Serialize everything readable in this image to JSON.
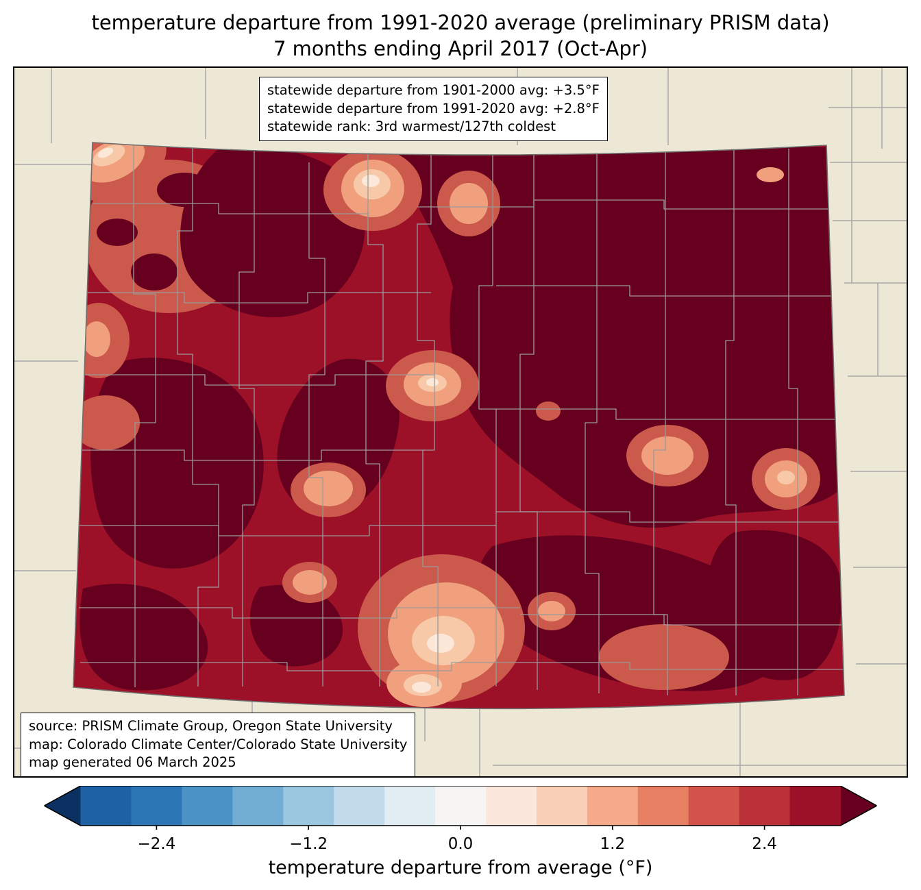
{
  "title": {
    "line1": "temperature departure from 1991-2020 average (preliminary PRISM data)",
    "line2": "7 months ending April 2017 (Oct-Apr)"
  },
  "stats_box": {
    "line1": "statewide departure from 1901-2000 avg: +3.5°F",
    "line2": "statewide departure from 1991-2020 avg: +2.8°F",
    "line3": "statewide rank: 3rd warmest/127th coldest"
  },
  "source_box": {
    "line1": "source: PRISM Climate Group, Oregon State University",
    "line2": "map: Colorado Climate Center/Colorado State University",
    "line3": "map generated 06 March 2025"
  },
  "colorbar": {
    "label": "temperature departure from average (°F)",
    "vmin": -3.0,
    "vmax": 3.0,
    "tick_values": [
      -2.4,
      -1.2,
      0.0,
      1.2,
      2.4
    ],
    "tick_labels": [
      "−2.4",
      "−1.2",
      "0.0",
      "1.2",
      "2.4"
    ],
    "under_color": "#0a3161",
    "over_color": "#67001f",
    "segments": [
      "#1e61a5",
      "#2d76b5",
      "#4a93c4",
      "#71acd2",
      "#9bc6e0",
      "#c3daeb",
      "#e1ecf3",
      "#f7f5f3",
      "#fbe7db",
      "#fbd0b9",
      "#f5ab89",
      "#e77f63",
      "#d1534a",
      "#bc3038",
      "#9c1127"
    ]
  },
  "map": {
    "region": "Colorado",
    "background": "#ece8d5",
    "state_border_color": "#6e6e6e",
    "county_line_color": "#9a9a9a",
    "neighbor_line_color": "#a8a8a8",
    "palette": {
      "base": "#9c1127",
      "dark": "#67001f",
      "mid": "#cc5a4c",
      "salmon": "#f0a07d",
      "peach": "#f8c9a9",
      "cream": "#fbe8d8"
    }
  }
}
